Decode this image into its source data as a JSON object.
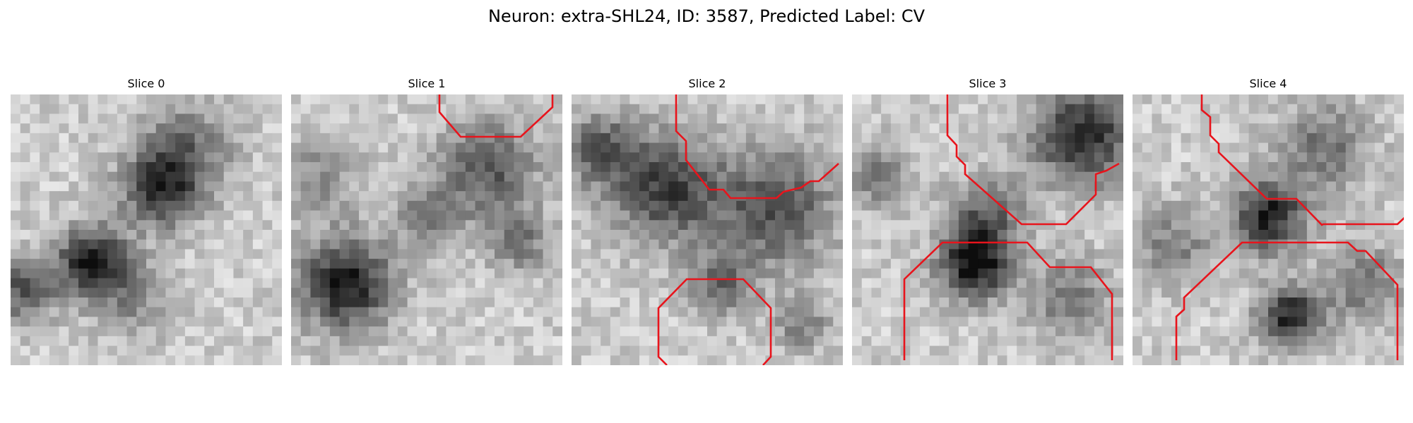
{
  "title": "Neuron: extra-SHL24, ID: 3587, Predicted Label: CV",
  "trace_color": "#e8141c",
  "panels": [
    {
      "label": "Slice 0",
      "trace": []
    },
    {
      "label": "Slice 1",
      "trace": [
        [
          [
            210,
            0
          ],
          [
            210,
            25
          ],
          [
            240,
            60
          ],
          [
            325,
            60
          ],
          [
            370,
            18
          ],
          [
            370,
            0
          ]
        ]
      ]
    },
    {
      "label": "Slice 2",
      "trace": [
        [
          [
            148,
            0
          ],
          [
            148,
            52
          ],
          [
            162,
            66
          ],
          [
            162,
            93
          ],
          [
            195,
            135
          ],
          [
            215,
            135
          ],
          [
            225,
            147
          ],
          [
            290,
            147
          ],
          [
            300,
            138
          ],
          [
            325,
            132
          ],
          [
            338,
            123
          ],
          [
            350,
            123
          ],
          [
            378,
            98
          ]
        ],
        [
          [
            135,
            384
          ],
          [
            123,
            372
          ],
          [
            123,
            303
          ],
          [
            163,
            262
          ],
          [
            243,
            262
          ],
          [
            282,
            303
          ],
          [
            282,
            372
          ],
          [
            271,
            384
          ]
        ]
      ]
    },
    {
      "label": "Slice 3",
      "trace": [
        [
          [
            135,
            0
          ],
          [
            135,
            58
          ],
          [
            148,
            72
          ],
          [
            148,
            88
          ],
          [
            160,
            100
          ],
          [
            160,
            113
          ],
          [
            240,
            184
          ],
          [
            303,
            184
          ],
          [
            345,
            142
          ],
          [
            345,
            113
          ],
          [
            360,
            108
          ],
          [
            378,
            98
          ]
        ],
        [
          [
            74,
            377
          ],
          [
            74,
            262
          ],
          [
            128,
            210
          ],
          [
            248,
            210
          ],
          [
            280,
            245
          ],
          [
            338,
            245
          ],
          [
            368,
            283
          ],
          [
            368,
            377
          ]
        ]
      ]
    },
    {
      "label": "Slice 4",
      "trace": [
        [
          [
            98,
            0
          ],
          [
            98,
            22
          ],
          [
            110,
            32
          ],
          [
            110,
            58
          ],
          [
            122,
            70
          ],
          [
            122,
            82
          ],
          [
            190,
            148
          ],
          [
            232,
            148
          ],
          [
            268,
            185
          ],
          [
            270,
            184
          ],
          [
            375,
            184
          ],
          [
            388,
            172
          ]
        ],
        [
          [
            62,
            377
          ],
          [
            62,
            315
          ],
          [
            73,
            305
          ],
          [
            73,
            288
          ],
          [
            155,
            210
          ],
          [
            305,
            210
          ],
          [
            318,
            222
          ],
          [
            330,
            222
          ],
          [
            375,
            270
          ],
          [
            375,
            377
          ]
        ]
      ]
    }
  ]
}
